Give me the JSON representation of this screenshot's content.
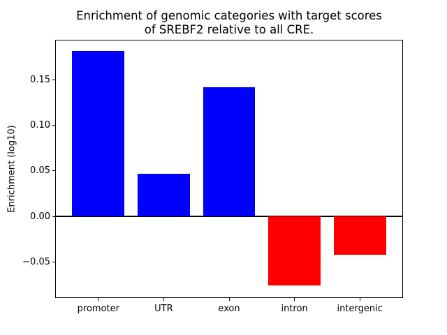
{
  "chart_data": {
    "type": "bar",
    "title": "Enrichment of genomic categories with target scores\nof SREBF2 relative to all CRE.",
    "title_lines": [
      "Enrichment of genomic categories with target scores",
      "of SREBF2 relative to all CRE."
    ],
    "ylabel": "Enrichment (log10)",
    "categories": [
      "promoter",
      "UTR",
      "exon",
      "intron",
      "intergenic"
    ],
    "values": [
      0.182,
      0.047,
      0.142,
      -0.076,
      -0.042
    ],
    "positive_color": "#0000ff",
    "negative_color": "#ff0000",
    "yticks": [
      0.15,
      0.1,
      0.05,
      0.0,
      -0.05
    ],
    "ytick_labels": [
      "0.15",
      "0.10",
      "0.05",
      "0.00",
      "−0.05"
    ],
    "ylim": [
      -0.0892,
      0.1938
    ],
    "xlim": [
      -0.65,
      4.65
    ],
    "bar_width": 0.8,
    "zero_line": true,
    "grid": false,
    "legend": "none",
    "axis_color": "#000000",
    "background_color": "#ffffff"
  }
}
